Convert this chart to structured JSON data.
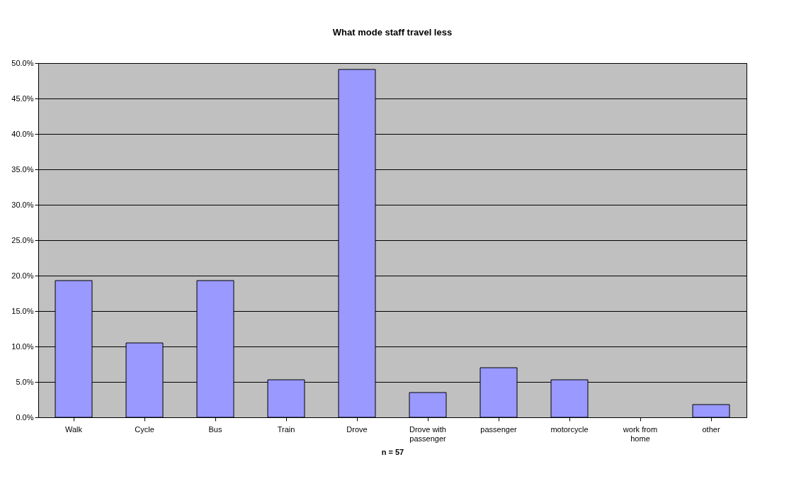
{
  "chart_data": {
    "type": "bar",
    "title": "What mode staff travel less",
    "xlabel": "n = 57",
    "categories": [
      "Walk",
      "Cycle",
      "Bus",
      "Train",
      "Drove",
      "Drove with passenger",
      "passenger",
      "motorcycle",
      "work from home",
      "other"
    ],
    "values": [
      19.3,
      10.5,
      19.3,
      5.3,
      49.1,
      3.5,
      7.0,
      5.3,
      0,
      1.8
    ],
    "color": "#9999ff",
    "ylim": [
      0,
      50
    ],
    "yticks": [
      {
        "value": 0,
        "label": "0.0%"
      },
      {
        "value": 5,
        "label": "5.0%"
      },
      {
        "value": 10,
        "label": "10.0%"
      },
      {
        "value": 15,
        "label": "15.0%"
      },
      {
        "value": 20,
        "label": "20.0%"
      },
      {
        "value": 25,
        "label": "25.0%"
      },
      {
        "value": 30,
        "label": "30.0%"
      },
      {
        "value": 35,
        "label": "35.0%"
      },
      {
        "value": 40,
        "label": "40.0%"
      },
      {
        "value": 45,
        "label": "45.0%"
      },
      {
        "value": 50,
        "label": "50.0%"
      }
    ],
    "grid": "y"
  }
}
